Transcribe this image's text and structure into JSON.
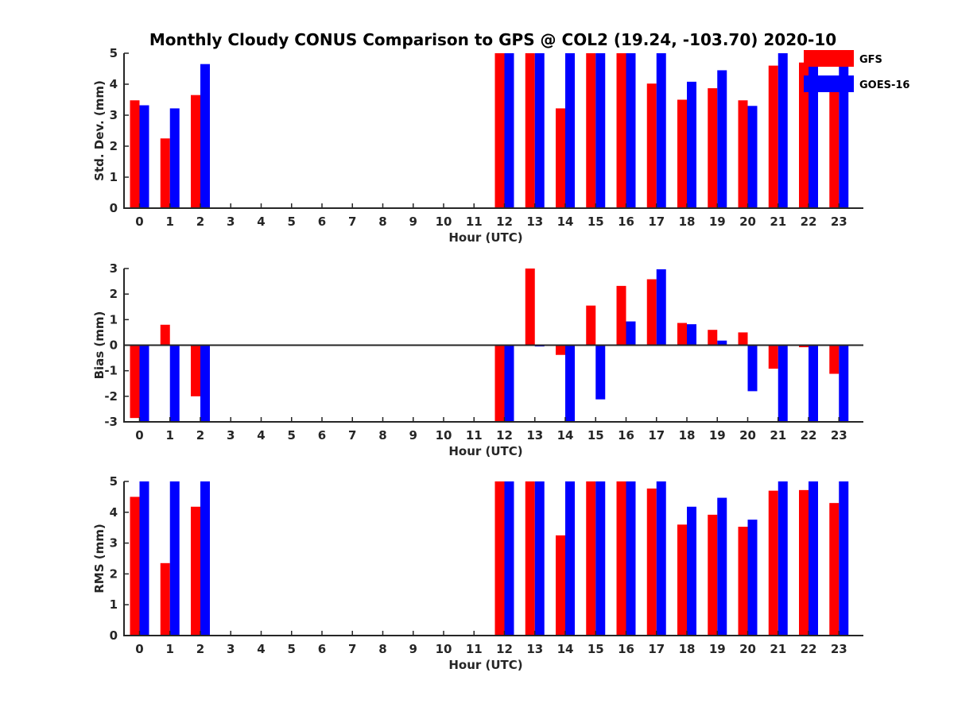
{
  "chart_data": {
    "type": "bar",
    "title": "Monthly Cloudy CONUS Comparison to GPS @ COL2 (19.24, -103.70) 2020-10",
    "categories": [
      "0",
      "1",
      "2",
      "3",
      "4",
      "5",
      "6",
      "7",
      "8",
      "9",
      "10",
      "11",
      "12",
      "13",
      "14",
      "15",
      "16",
      "17",
      "18",
      "19",
      "20",
      "21",
      "22",
      "23"
    ],
    "legend": [
      {
        "name": "GFS",
        "color": "#ff0000"
      },
      {
        "name": "GOES-16",
        "color": "#0000ff"
      }
    ],
    "panels": [
      {
        "ylabel": "Std. Dev. (mm)",
        "xlabel": "Hour (UTC)",
        "ylim": [
          0,
          5
        ],
        "yticks": [
          "0",
          "1",
          "2",
          "3",
          "4",
          "5"
        ],
        "series": [
          {
            "name": "GFS",
            "color": "#ff0000",
            "values": [
              3.48,
              2.25,
              3.65,
              null,
              null,
              null,
              null,
              null,
              null,
              null,
              null,
              null,
              5,
              5,
              3.22,
              5,
              5,
              4.02,
              3.5,
              3.87,
              3.48,
              4.6,
              4.7,
              3.9
            ]
          },
          {
            "name": "GOES-16",
            "color": "#0000ff",
            "values": [
              3.32,
              3.22,
              4.65,
              null,
              null,
              null,
              null,
              null,
              null,
              null,
              null,
              null,
              5,
              5,
              5,
              5,
              5,
              5,
              4.08,
              4.45,
              3.3,
              5,
              5,
              4.7
            ]
          }
        ]
      },
      {
        "ylabel": "Bias (mm)",
        "xlabel": "Hour (UTC)",
        "ylim": [
          -3,
          3
        ],
        "yticks": [
          "-3",
          "-2",
          "-1",
          "0",
          "1",
          "2",
          "3"
        ],
        "series": [
          {
            "name": "GFS",
            "color": "#ff0000",
            "values": [
              -2.85,
              0.8,
              -2.0,
              null,
              null,
              null,
              null,
              null,
              null,
              null,
              null,
              null,
              -3,
              3,
              -0.38,
              1.55,
              2.32,
              2.58,
              0.87,
              0.6,
              0.5,
              -0.92,
              -0.08,
              -1.12
            ]
          },
          {
            "name": "GOES-16",
            "color": "#0000ff",
            "values": [
              -3,
              -3,
              -3,
              null,
              null,
              null,
              null,
              null,
              null,
              null,
              null,
              null,
              -3,
              -0.05,
              -3,
              -2.12,
              0.93,
              2.97,
              0.82,
              0.18,
              -1.8,
              -3,
              -3,
              -3
            ]
          }
        ]
      },
      {
        "ylabel": "RMS (mm)",
        "xlabel": "Hour (UTC)",
        "ylim": [
          0,
          5
        ],
        "yticks": [
          "0",
          "1",
          "2",
          "3",
          "4",
          "5"
        ],
        "series": [
          {
            "name": "GFS",
            "color": "#ff0000",
            "values": [
              4.5,
              2.35,
              4.18,
              null,
              null,
              null,
              null,
              null,
              null,
              null,
              null,
              null,
              5,
              5,
              3.25,
              5,
              5,
              4.77,
              3.6,
              3.92,
              3.53,
              4.7,
              4.72,
              4.3
            ]
          },
          {
            "name": "GOES-16",
            "color": "#0000ff",
            "values": [
              5,
              5,
              5,
              null,
              null,
              null,
              null,
              null,
              null,
              null,
              null,
              null,
              5,
              5,
              5,
              5,
              5,
              5,
              4.18,
              4.47,
              3.76,
              5,
              5,
              5
            ]
          }
        ]
      }
    ]
  }
}
